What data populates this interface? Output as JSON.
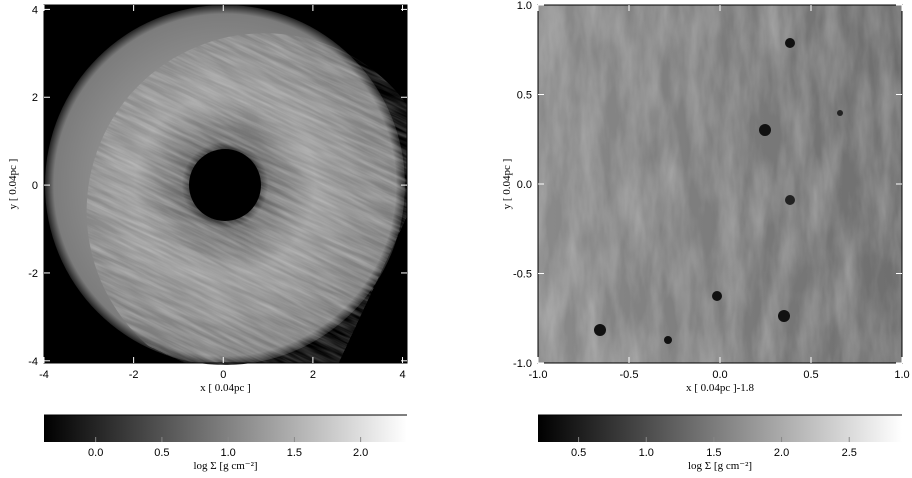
{
  "chart_data": [
    {
      "type": "image",
      "xlabel": "x [ 0.04pc ]",
      "ylabel": "y [ 0.04pc ]",
      "xlim": [
        -4,
        4.1
      ],
      "ylim": [
        -4.05,
        4.1
      ],
      "xticks": [
        -4,
        -2,
        0,
        2,
        4
      ],
      "yticks": [
        -4,
        -2,
        0,
        2,
        4
      ],
      "colorbar": {
        "label": "log Σ [g cm⁻²]",
        "lim": [
          -0.39,
          2.35
        ],
        "ticks": [
          {
            "value": 0,
            "label": "0.0"
          },
          {
            "value": 0.5,
            "label": "0.5"
          },
          {
            "value": 1,
            "label": "1.0"
          },
          {
            "value": 1.5,
            "label": "1.5"
          },
          {
            "value": 2,
            "label": "2.0"
          }
        ]
      }
    },
    {
      "type": "image",
      "xlabel": "x [ 0.04pc ]-1.8",
      "ylabel": "y [ 0.04pc ]",
      "xlim": [
        -1,
        1
      ],
      "ylim": [
        -1,
        1
      ],
      "xticks": [
        {
          "value": -1,
          "label": "-1.0"
        },
        {
          "value": -0.5,
          "label": "-0.5"
        },
        {
          "value": 0,
          "label": "0.0"
        },
        {
          "value": 0.5,
          "label": "0.5"
        },
        {
          "value": 1,
          "label": "1.0"
        }
      ],
      "yticks": [
        {
          "value": -1,
          "label": "-1.0"
        },
        {
          "value": -0.5,
          "label": "-0.5"
        },
        {
          "value": 0,
          "label": "0.0"
        },
        {
          "value": 0.5,
          "label": "0.5"
        },
        {
          "value": 1,
          "label": "1.0"
        }
      ],
      "colorbar": {
        "label": "log Σ [g cm⁻²]",
        "lim": [
          0.2,
          2.89
        ],
        "ticks": [
          {
            "value": 0.5,
            "label": "0.5"
          },
          {
            "value": 1,
            "label": "1.0"
          },
          {
            "value": 1.5,
            "label": "1.5"
          },
          {
            "value": 2,
            "label": "2.0"
          },
          {
            "value": 2.5,
            "label": "2.5"
          }
        ]
      }
    }
  ]
}
